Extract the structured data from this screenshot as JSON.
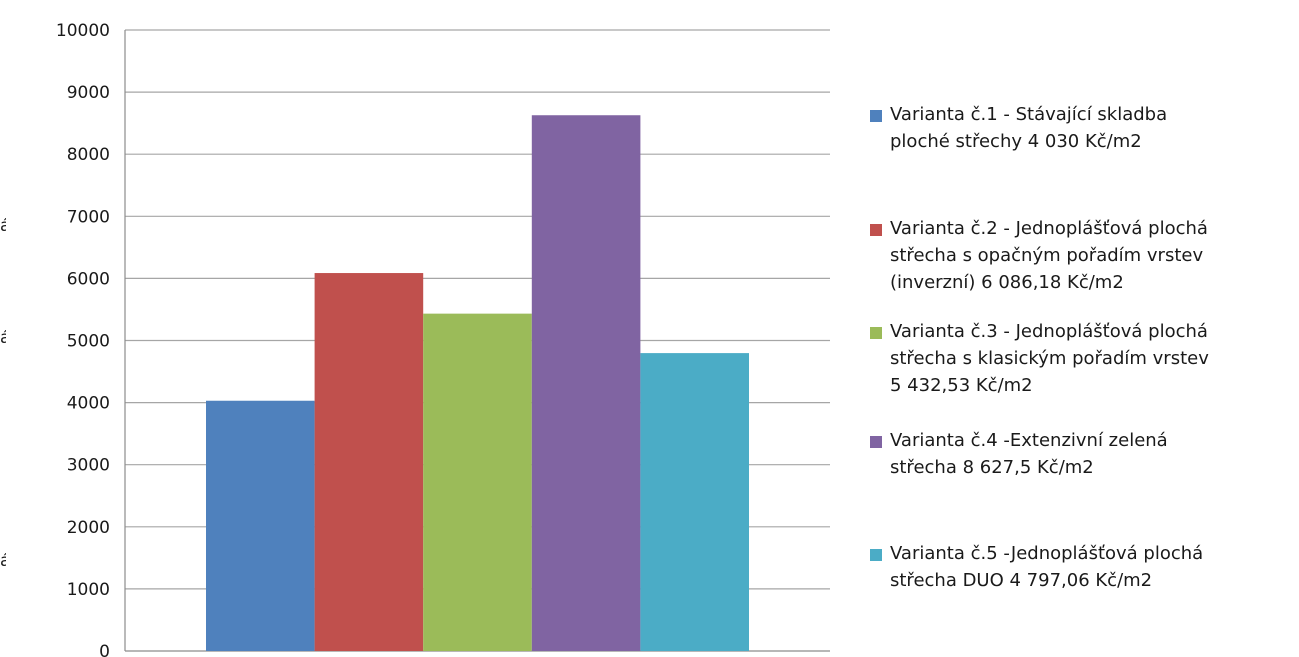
{
  "chart_data": {
    "type": "bar",
    "title": "",
    "xlabel": "",
    "ylabel": "",
    "ylim": [
      0,
      10000
    ],
    "yticks": [
      0,
      1000,
      2000,
      3000,
      4000,
      5000,
      6000,
      7000,
      8000,
      9000,
      10000
    ],
    "ytick_labels": [
      "0",
      "1000",
      "2000",
      "3000",
      "4000",
      "5000",
      "6000",
      "7000",
      "8000",
      "9000",
      "10000"
    ],
    "grid": true,
    "legend_position": "right",
    "clipped_left_marks": [
      "á",
      "á",
      "á"
    ],
    "series": [
      {
        "name": "Varianta č.1 - Stávající skladba ploché střechy 4 030 Kč/m2",
        "lines": [
          "Varianta č.1 - Stávající skladba",
          "ploché střechy 4 030 Kč/m2"
        ],
        "value": 4030,
        "color": "#4f81bd"
      },
      {
        "name": "Varianta č.2 - Jednoplášťová plochá střecha s opačným pořadím vrstev (inverzní) 6 086,18 Kč/m2",
        "lines": [
          "Varianta č.2 - Jednoplášťová plochá",
          "střecha s opačným pořadím vrstev",
          "(inverzní) 6 086,18 Kč/m2"
        ],
        "value": 6086.18,
        "color": "#c0504d"
      },
      {
        "name": "Varianta č.3 - Jednoplášťová plochá střecha s klasickým pořadím vrstev 5 432,53 Kč/m2",
        "lines": [
          "Varianta č.3 - Jednoplášťová plochá",
          "střecha s klasickým pořadím vrstev",
          "5 432,53 Kč/m2"
        ],
        "value": 5432.53,
        "color": "#9bbb59"
      },
      {
        "name": "Varianta č.4 -Extenzivní zelená střecha 8 627,5 Kč/m2",
        "lines": [
          "Varianta č.4 -Extenzivní zelená",
          "střecha 8 627,5 Kč/m2"
        ],
        "value": 8627.5,
        "color": "#8064a2"
      },
      {
        "name": "Varianta č.5 -Jednoplášťová plochá střecha DUO 4 797,06 Kč/m2",
        "lines": [
          "Varianta č.5 -Jednoplášťová plochá",
          "střecha DUO 4 797,06 Kč/m2"
        ],
        "value": 4797.06,
        "color": "#4bacc6"
      }
    ]
  }
}
